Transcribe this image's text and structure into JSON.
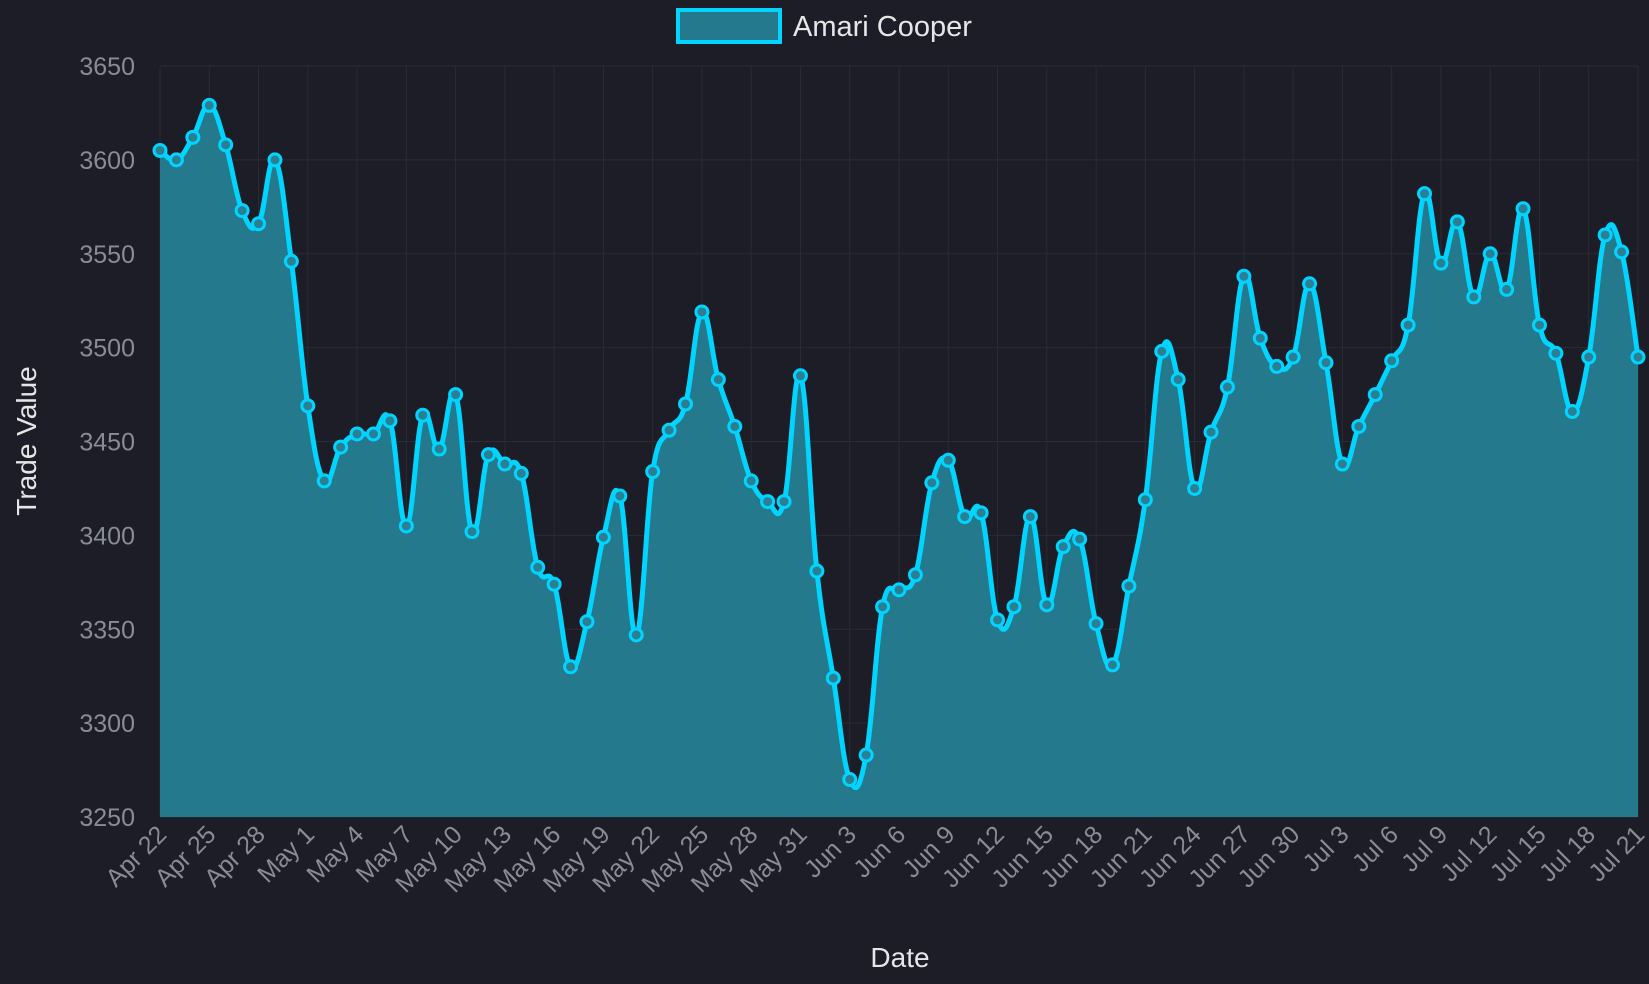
{
  "chart_data": {
    "type": "area",
    "xlabel": "Date",
    "ylabel": "Trade Value",
    "ylim": [
      3250,
      3650
    ],
    "y_ticks": [
      3250,
      3300,
      3350,
      3400,
      3450,
      3500,
      3550,
      3600,
      3650
    ],
    "x_tick_labels": [
      "Apr 22",
      "Apr 25",
      "Apr 28",
      "May 1",
      "May 4",
      "May 7",
      "May 10",
      "May 13",
      "May 16",
      "May 19",
      "May 22",
      "May 25",
      "May 28",
      "May 31",
      "Jun 3",
      "Jun 6",
      "Jun 9",
      "Jun 12",
      "Jun 15",
      "Jun 18",
      "Jun 21",
      "Jun 24",
      "Jun 27",
      "Jun 30",
      "Jul 3",
      "Jul 6",
      "Jul 9",
      "Jul 12",
      "Jul 15",
      "Jul 18",
      "Jul 21"
    ],
    "grid": true,
    "legend_position": "top-center",
    "colors": {
      "line": "#00d4ff",
      "fill": "#24798c",
      "background": "#1c1d26"
    },
    "series": [
      {
        "name": "Amari Cooper",
        "start_date": "Apr 22",
        "end_date": "Jul 21",
        "values": [
          3605,
          3600,
          3612,
          3629,
          3608,
          3573,
          3566,
          3600,
          3546,
          3469,
          3429,
          3447,
          3454,
          3454,
          3461,
          3405,
          3464,
          3446,
          3475,
          3402,
          3443,
          3438,
          3433,
          3383,
          3374,
          3330,
          3354,
          3399,
          3421,
          3347,
          3434,
          3456,
          3470,
          3519,
          3483,
          3458,
          3429,
          3418,
          3418,
          3485,
          3381,
          3324,
          3270,
          3283,
          3362,
          3371,
          3379,
          3428,
          3440,
          3410,
          3412,
          3355,
          3362,
          3410,
          3363,
          3394,
          3398,
          3353,
          3331,
          3373,
          3419,
          3498,
          3483,
          3425,
          3455,
          3479,
          3538,
          3505,
          3490,
          3495,
          3534,
          3492,
          3438,
          3458,
          3475,
          3493,
          3512,
          3582,
          3545,
          3567,
          3527,
          3550,
          3531,
          3574,
          3512,
          3497,
          3466,
          3495,
          3560,
          3551,
          3495
        ]
      }
    ]
  }
}
